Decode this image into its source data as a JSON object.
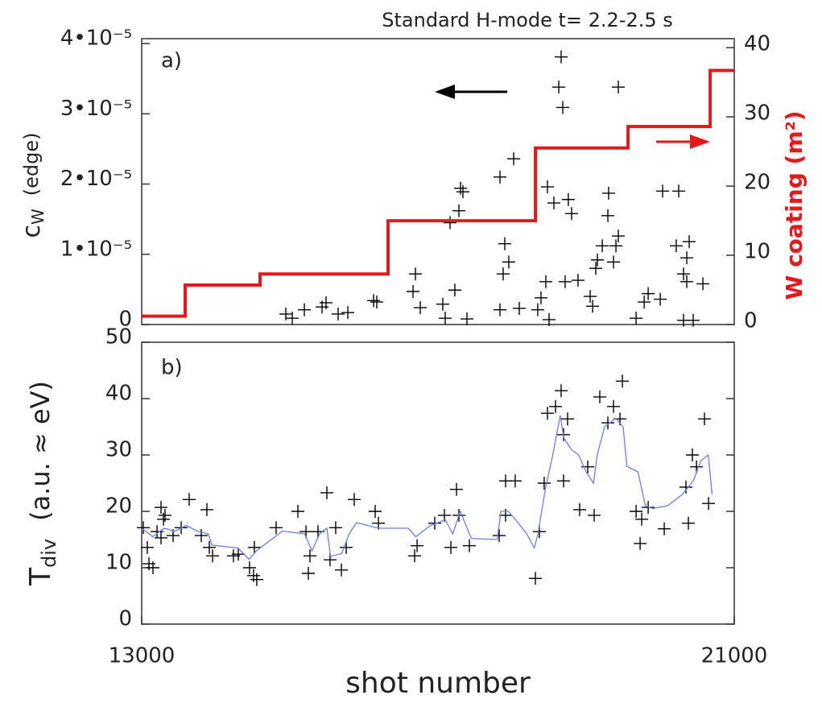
{
  "chart_data": [
    {
      "type": "scatter",
      "title": "Standard H-mode  t= 2.2-2.5 s",
      "panel_label": "a)",
      "ylabel": {
        "main": "c",
        "sub": "W",
        "suffix": "(edge)"
      },
      "y2label": "W  coating  (m²)",
      "xlim": [
        13000,
        21000
      ],
      "ylim": [
        0,
        4.07e-05
      ],
      "yticks": [
        0,
        {
          "value": 1e-05,
          "label": "1•10⁻⁵"
        },
        {
          "value": 2e-05,
          "label": "2•10⁻⁵"
        },
        {
          "value": 3e-05,
          "label": "3•10⁻⁵"
        },
        {
          "value": 4e-05,
          "label": "4•10⁻⁵"
        }
      ],
      "y2lim": [
        0,
        41.3
      ],
      "y2ticks": [
        0,
        10,
        20,
        30,
        40
      ],
      "series": [
        {
          "type": "scatter",
          "color": "#000000",
          "x": [
            18663,
            18631,
            18685,
            19435,
            18022,
            17837,
            17305,
            17337,
            17283,
            17163,
            18478,
            18760,
            18804,
            18565,
            19304,
            19294,
            19435,
            19403,
            19218,
            19153,
            19370,
            19131,
            20033,
            20250,
            20392,
            20217,
            20359,
            20315,
            20359,
            20577,
            17902,
            17956,
            17880,
            16696,
            16663,
            17228,
            16761,
            17065,
            17098,
            17391,
            18717,
            18891,
            18456,
            18391,
            18347,
            19055,
            19088,
            19675,
            19784,
            19838,
            20001,
            16131,
            16174,
            15489,
            15435,
            15196,
            14946,
            15033,
            15652,
            15783,
            18098,
            17837,
            18500,
            20315,
            20446
          ],
          "values": [
            3.81e-05,
            3.38e-05,
            3.09e-05,
            3.38e-05,
            2.36e-05,
            2.1e-05,
            1.94e-05,
            1.89e-05,
            1.62e-05,
            1.45e-05,
            1.96e-05,
            1.78e-05,
            1.58e-05,
            1.73e-05,
            1.87e-05,
            1.55e-05,
            1.26e-05,
            1.12e-05,
            1.12e-05,
            9.2e-06,
            8.9e-06,
            8e-06,
            1.9e-05,
            1.9e-05,
            1.18e-05,
            1.12e-05,
            9.5e-06,
            7.2e-06,
            6.1e-06,
            5.8e-06,
            1.15e-05,
            8.9e-06,
            7.2e-06,
            7.2e-06,
            4.7e-06,
            4.9e-06,
            2.4e-06,
            2.9e-06,
            9e-07,
            8e-07,
            6.1e-06,
            6.3e-06,
            6.1e-06,
            3.8e-06,
            2.1e-06,
            4e-06,
            2.6e-06,
            9e-07,
            3.2e-06,
            4.4e-06,
            3.6e-06,
            3.4e-06,
            3.2e-06,
            3.1e-06,
            2.5e-06,
            2.1e-06,
            1.5e-06,
            9e-07,
            1.5e-06,
            1.7e-06,
            2.3e-06,
            2.1e-06,
            7e-07,
            6e-07,
            6e-07
          ]
        },
        {
          "type": "step",
          "color": "#e31a1c",
          "axis": "y2",
          "x": [
            13000,
            13587,
            14598,
            16326,
            18316,
            19566,
            20675,
            21000
          ],
          "values": [
            1.2,
            5.7,
            7.3,
            15,
            25.5,
            28.6,
            36.7,
            36.7
          ]
        }
      ]
    },
    {
      "type": "scatter",
      "panel_label": "b)",
      "ylabel": {
        "main": "T",
        "sub": "div",
        "suffix": "(a.u. ≈ eV)"
      },
      "xlabel": "shot number",
      "xlim": [
        13000,
        21000
      ],
      "xticks": [
        13000,
        21000
      ],
      "ylim": [
        0,
        50
      ],
      "yticks": [
        0,
        10,
        20,
        30,
        40,
        50
      ],
      "series": [
        {
          "type": "scatter",
          "color": "#000000",
          "x": [
            13022,
            13076,
            13098,
            13152,
            13207,
            13261,
            13294,
            13315,
            13261,
            13424,
            13533,
            13641,
            13804,
            13880,
            13957,
            13913,
            14239,
            14304,
            14456,
            14510,
            14554,
            14521,
            14815,
            15109,
            15218,
            15272,
            15250,
            15380,
            15500,
            15543,
            15619,
            15696,
            15761,
            15869,
            16152,
            16196,
            16685,
            16718,
            16957,
            17087,
            17174,
            17250,
            17283,
            17424,
            17826,
            17913,
            18043,
            17913,
            18315,
            18369,
            18434,
            18478,
            18587,
            18663,
            18696,
            18750,
            18696,
            18913,
            19022,
            19109,
            19185,
            19294,
            19370,
            19457,
            19490,
            19675,
            19751,
            19729,
            19838,
            20055,
            20348,
            20435,
            20490,
            20598,
            20653,
            20381
          ],
          "values": [
            17.1,
            13.6,
            10.7,
            10,
            16.4,
            15.3,
            18.6,
            19.3,
            20.7,
            15.7,
            17.1,
            22.1,
            15.7,
            20.3,
            12.1,
            13.6,
            12.1,
            12.4,
            10,
            8.6,
            7.9,
            13.6,
            17.1,
            20,
            16.4,
            12.1,
            9,
            16.4,
            23.3,
            11.4,
            17.1,
            9.6,
            13.6,
            22.1,
            20,
            17.9,
            12.1,
            13.9,
            17.9,
            19.3,
            13.6,
            23.9,
            19.3,
            13.9,
            15.7,
            25.4,
            25.4,
            19.3,
            8.1,
            16.4,
            25,
            37.4,
            38.6,
            41.4,
            33.6,
            36.4,
            25.4,
            20.3,
            27.9,
            19.3,
            40.3,
            35.7,
            38.6,
            36.4,
            43.1,
            20,
            18.6,
            14.3,
            20.7,
            16.9,
            24.3,
            30,
            27.9,
            36.4,
            21.4,
            17.9
          ]
        },
        {
          "type": "line",
          "color": "#6a7fe0",
          "x": [
            13000,
            13150,
            13300,
            13450,
            13600,
            13750,
            13900,
            13950,
            14300,
            14450,
            14550,
            14700,
            14900,
            15200,
            15300,
            15400,
            15500,
            15550,
            15700,
            15800,
            15900,
            16200,
            16600,
            16700,
            16900,
            17100,
            17200,
            17300,
            17450,
            17800,
            17850,
            17950,
            18050,
            18200,
            18300,
            18350,
            18450,
            18550,
            18650,
            18700,
            18800,
            18900,
            19000,
            19100,
            19150,
            19250,
            19400,
            19500,
            19550,
            19700,
            19800,
            19900,
            20100,
            20300,
            20450,
            20550,
            20650,
            20700
          ],
          "values": [
            17,
            15.5,
            17,
            16.5,
            17.5,
            16.5,
            16,
            14,
            13.5,
            11.5,
            13,
            14.5,
            16.5,
            16,
            13,
            16,
            17,
            12,
            12.5,
            16,
            18,
            17,
            17,
            15.5,
            17.5,
            18.5,
            16,
            20,
            15.2,
            15,
            20,
            20,
            18.5,
            16,
            13.5,
            16,
            24,
            30,
            37,
            33,
            31,
            30,
            27,
            25,
            30,
            35,
            36.5,
            35,
            28,
            27,
            21,
            20.5,
            21,
            23,
            25.5,
            29,
            30,
            23
          ]
        }
      ]
    }
  ]
}
